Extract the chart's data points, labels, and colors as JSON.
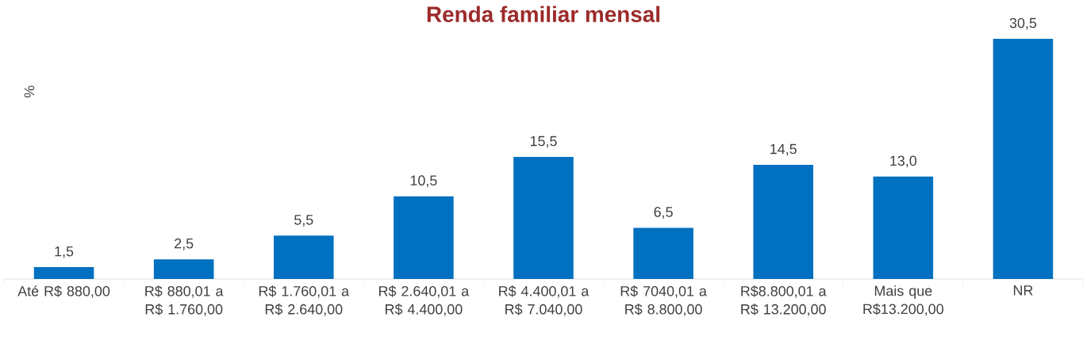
{
  "chart_data": {
    "type": "bar",
    "title": "Renda familiar mensal",
    "ylabel": "%",
    "categories": [
      "Até R$ 880,00",
      "R$ 880,01 a R$ 1.760,00",
      "R$ 1.760,01 a R$ 2.640,00",
      "R$ 2.640,01 a R$ 4.400,00",
      "R$ 4.400,01 a R$ 7.040,00",
      "R$ 7040,01 a R$ 8.800,00",
      "R$8.800,01 a R$ 13.200,00",
      "Mais que R$13.200,00",
      "NR"
    ],
    "values": [
      1.5,
      2.5,
      5.5,
      10.5,
      15.5,
      6.5,
      14.5,
      13.0,
      30.5
    ],
    "value_labels": [
      "1,5",
      "2,5",
      "5,5",
      "10,5",
      "15,5",
      "6,5",
      "14,5",
      "13,0",
      "30,5"
    ],
    "color": "#0070c0",
    "tick_labels": "x"
  }
}
